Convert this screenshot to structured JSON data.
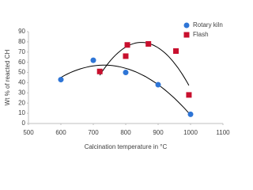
{
  "chart_data": {
    "type": "scatter",
    "x_label": "Calcination temperature in °C",
    "y_label": "Wt % of reacted CH",
    "series": [
      {
        "name": "Rotary kiln",
        "color": "#2e75d6",
        "marker": "circle",
        "x": [
          600,
          700,
          800,
          900,
          1000
        ],
        "values": [
          43,
          62,
          50,
          38,
          9
        ]
      },
      {
        "name": "Flash",
        "color": "#c8102e",
        "marker": "square",
        "x": [
          720,
          800,
          805,
          870,
          955,
          995
        ],
        "values": [
          51,
          66,
          77,
          78,
          71,
          28
        ]
      }
    ],
    "trendline": "polynomial",
    "trendline_color": "#000000",
    "xlim": [
      500,
      1100
    ],
    "xticks": [
      500,
      600,
      700,
      800,
      900,
      1000,
      1100
    ],
    "ylim": [
      0,
      90
    ],
    "yticks": [
      0,
      10,
      20,
      30,
      40,
      50,
      60,
      70,
      80,
      90
    ],
    "legend": "top-right"
  }
}
